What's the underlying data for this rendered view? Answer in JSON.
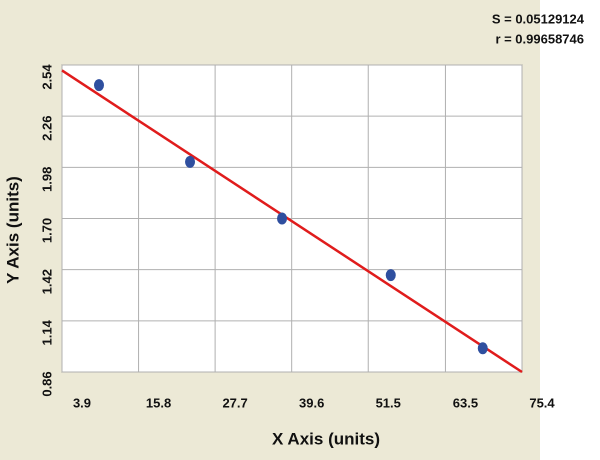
{
  "chart_data": {
    "type": "scatter",
    "annotations": [
      "S = 0.05129124",
      "r = 0.99658746"
    ],
    "x_label": "X Axis (units)",
    "y_label": "Y Axis (units)",
    "xlim": [
      3.9,
      75.4
    ],
    "xticks": [
      3.9,
      15.8,
      27.7,
      39.6,
      51.5,
      63.5,
      75.4
    ],
    "ylim": [
      0.86,
      2.54
    ],
    "yticks": [
      0.86,
      1.14,
      1.42,
      {
        "value": 1.7,
        "label": "1.70"
      },
      1.98,
      2.26,
      2.54
    ],
    "grid": true,
    "points": {
      "color": "#2f4f9f",
      "x": [
        9.65,
        23.8,
        38.1,
        55.0,
        69.3
      ],
      "y": [
        2.43,
        2.01,
        1.7,
        1.39,
        0.99
      ]
    },
    "fit": {
      "color": "#e01c1c",
      "x": [
        3.9,
        75.4
      ],
      "y": [
        2.51,
        0.86
      ]
    }
  }
}
